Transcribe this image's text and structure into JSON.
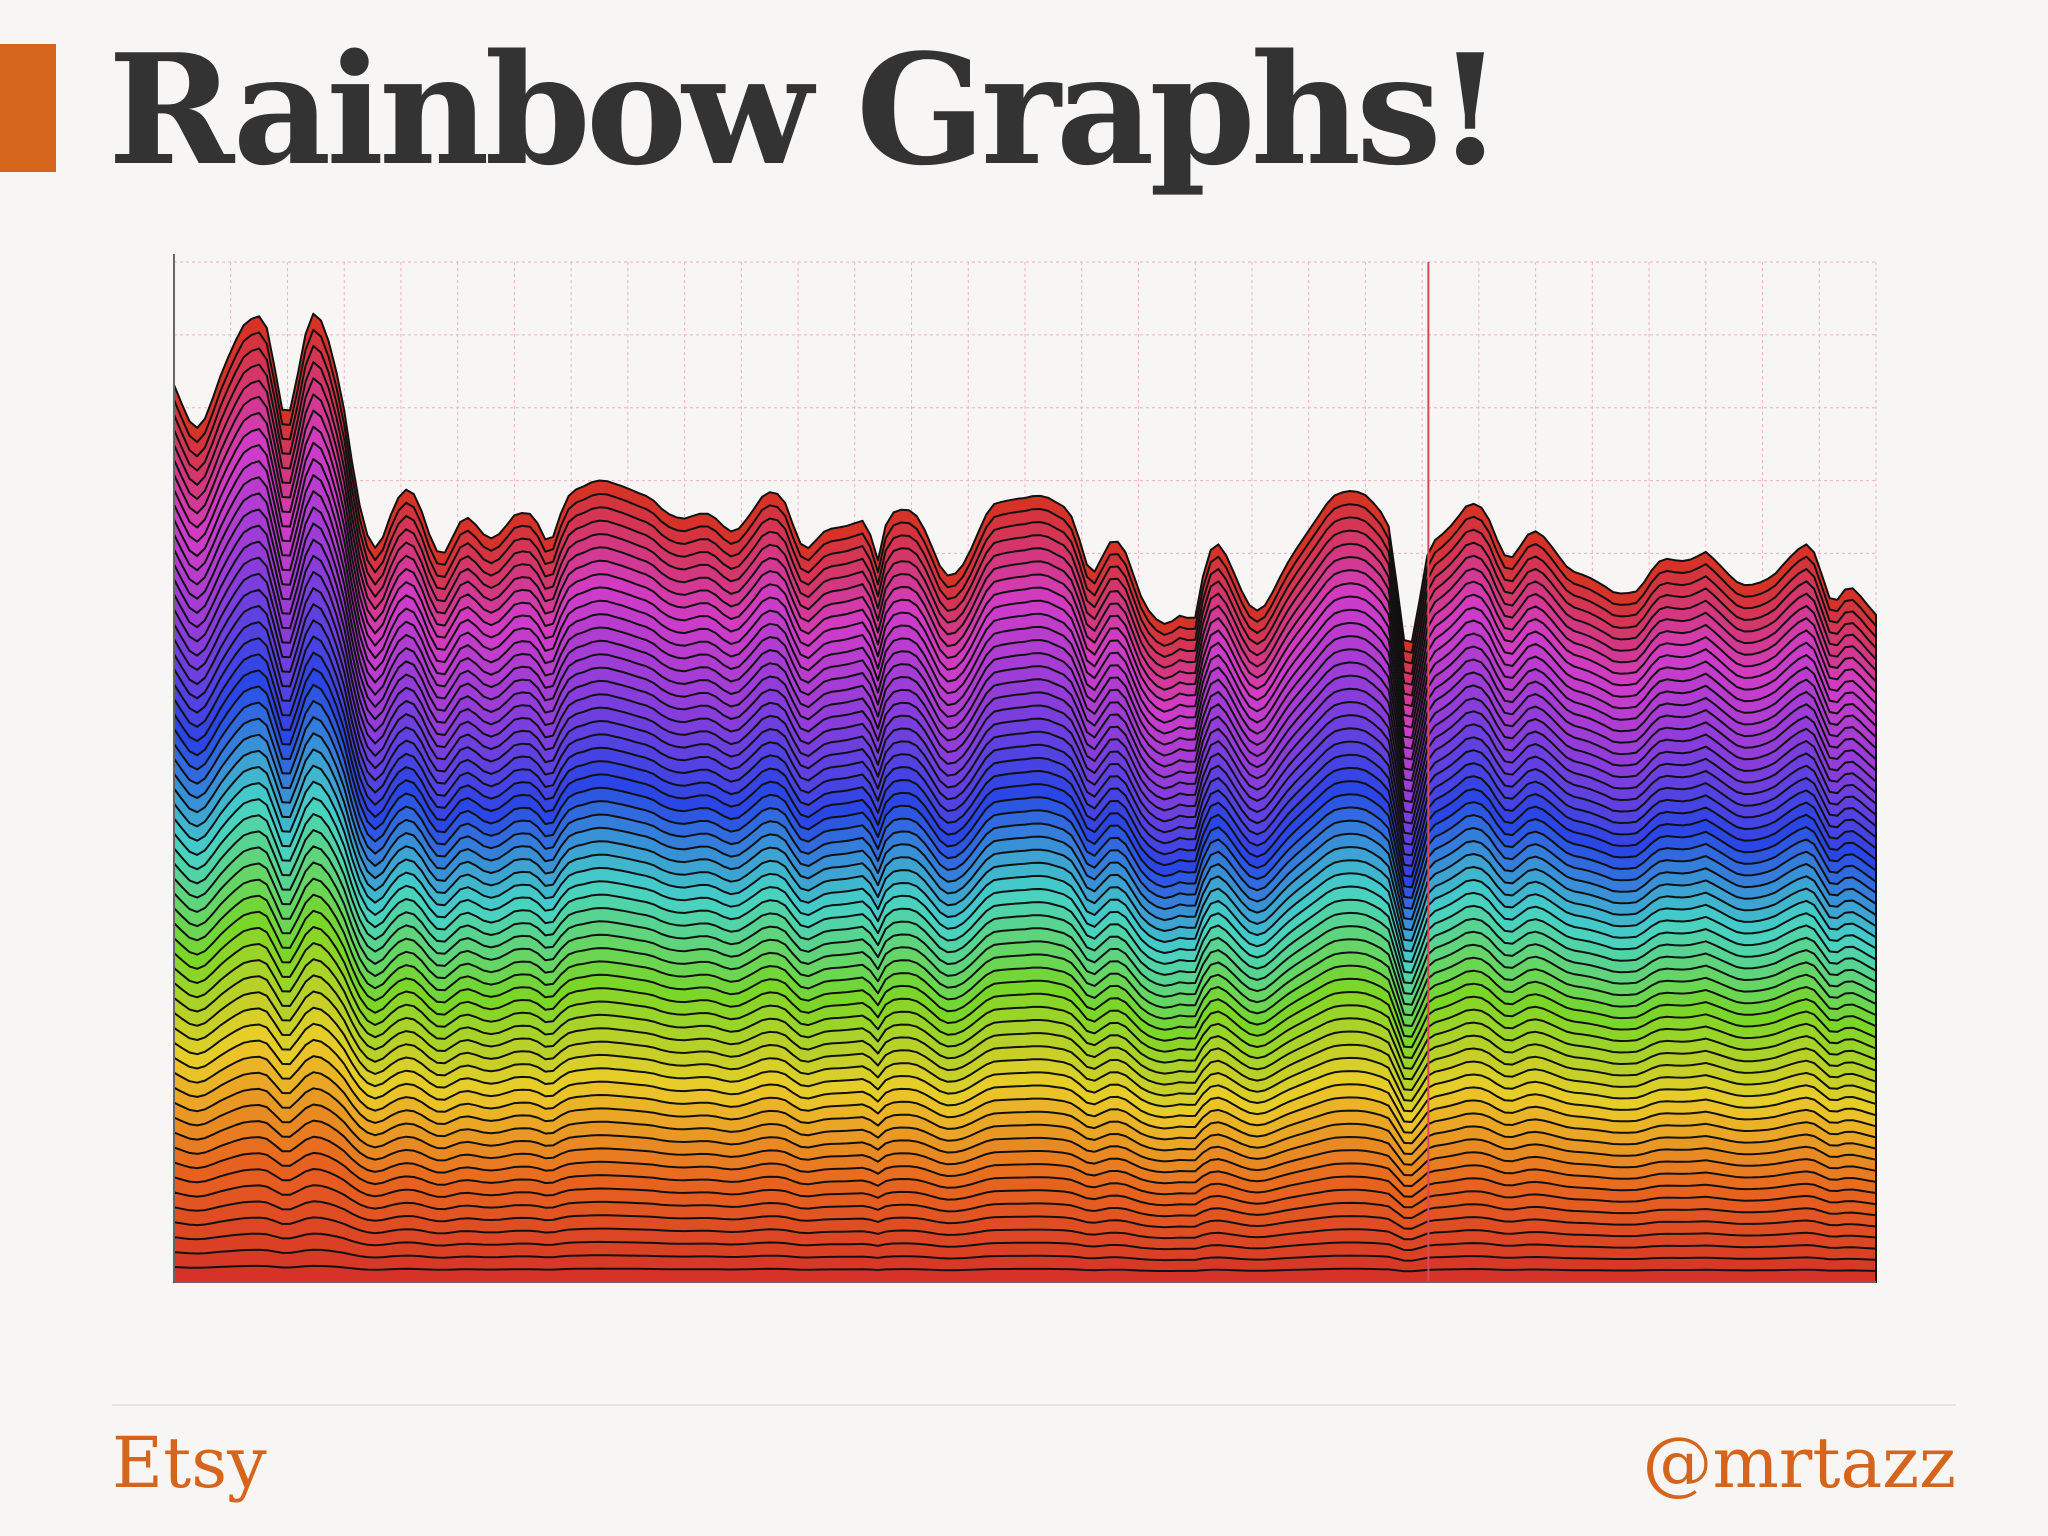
{
  "slide": {
    "title": "Rainbow Graphs!",
    "footer_left": "Etsy",
    "footer_right": "@mrtazz"
  },
  "colors": {
    "accent": "#d5641c",
    "title_text": "#333333",
    "background": "#f7f6f5",
    "grid": "#f2b3bd",
    "series_outline": "#111111"
  },
  "chart_data": {
    "type": "area",
    "stacked": true,
    "title": "",
    "xlabel": "",
    "ylabel": "",
    "grid": true,
    "legend": "none",
    "series_count": 60,
    "palette_order": [
      "red",
      "orange",
      "yellow",
      "green",
      "cyan",
      "blue",
      "purple",
      "magenta",
      "red"
    ],
    "total_envelope": [
      1.0,
      1.02,
      1.06,
      1.05,
      1.08,
      1.02,
      0.9,
      0.88,
      0.86,
      0.87,
      0.88,
      0.86,
      0.85,
      0.86,
      0.88,
      0.86,
      0.85,
      0.84,
      0.87,
      0.86,
      0.84,
      0.82,
      0.83,
      0.86,
      0.88,
      0.85,
      0.83,
      0.84,
      0.86,
      0.84,
      0.82,
      0.8,
      0.81,
      0.83,
      0.85,
      0.84,
      0.82,
      0.84,
      0.86,
      0.84,
      0.82,
      0.8,
      0.81,
      0.79,
      0.8,
      0.82,
      0.79,
      0.78,
      0.79,
      0.77,
      0.75
    ]
  }
}
